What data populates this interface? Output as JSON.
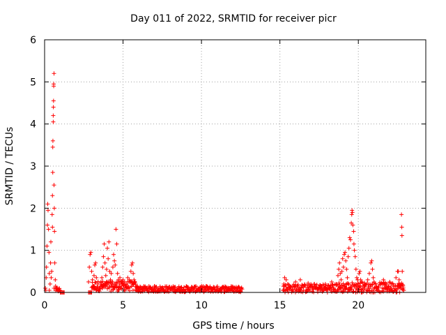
{
  "chart_data": {
    "type": "scatter",
    "title": "Day 011 of 2022, SRMTID for receiver picr",
    "xlabel": "GPS time / hours",
    "ylabel": "SRMTID / TECUs",
    "xlim": [
      0,
      24.3
    ],
    "ylim": [
      0,
      6
    ],
    "x_ticks": [
      "0",
      "5",
      "10",
      "15",
      "20"
    ],
    "x_tick_values": [
      0,
      5,
      10,
      15,
      20
    ],
    "y_ticks": [
      "0",
      "1",
      "2",
      "3",
      "4",
      "5",
      "6"
    ],
    "y_tick_values": [
      0,
      1,
      2,
      3,
      4,
      5,
      6
    ],
    "grid": true,
    "marker": "+",
    "color": "#ff0000",
    "series": [
      {
        "name": "SRMTID",
        "points": [
          [
            0.05,
            0.1
          ],
          [
            0.1,
            0.35
          ],
          [
            0.12,
            0.6
          ],
          [
            0.15,
            1.1
          ],
          [
            0.18,
            1.6
          ],
          [
            0.2,
            2.1
          ],
          [
            0.22,
            1.95
          ],
          [
            0.25,
            1.5
          ],
          [
            0.28,
            0.95
          ],
          [
            0.3,
            0.45
          ],
          [
            0.35,
            0.2
          ],
          [
            0.38,
            0.7
          ],
          [
            0.4,
            1.2
          ],
          [
            0.42,
            0.35
          ],
          [
            0.45,
            0.5
          ],
          [
            0.48,
            1.85
          ],
          [
            0.5,
            1.55
          ],
          [
            0.5,
            2.3
          ],
          [
            0.52,
            2.85
          ],
          [
            0.52,
            3.45
          ],
          [
            0.53,
            3.6
          ],
          [
            0.55,
            4.05
          ],
          [
            0.55,
            4.2
          ],
          [
            0.56,
            4.4
          ],
          [
            0.57,
            4.55
          ],
          [
            0.58,
            4.9
          ],
          [
            0.58,
            4.95
          ],
          [
            0.6,
            5.2
          ],
          [
            0.6,
            2.55
          ],
          [
            0.62,
            2.0
          ],
          [
            0.63,
            1.45
          ],
          [
            0.65,
            0.7
          ],
          [
            0.68,
            0.3
          ],
          [
            0.7,
            0.15
          ],
          [
            0.08,
            0.05
          ],
          [
            0.3,
            0.05
          ],
          [
            0.6,
            0.1
          ],
          [
            1.0,
            0.0
          ],
          [
            1.05,
            0.0
          ],
          [
            1.1,
            0.0
          ],
          [
            1.15,
            0.0
          ],
          [
            1.2,
            0.0
          ],
          [
            1.25,
            0.0
          ],
          [
            2.8,
            0.0
          ],
          [
            2.85,
            0.0
          ],
          [
            2.9,
            0.0
          ],
          [
            2.95,
            0.0
          ],
          [
            3.0,
            0.0
          ],
          [
            2.8,
            0.25
          ],
          [
            2.85,
            0.6
          ],
          [
            2.9,
            0.9
          ],
          [
            2.95,
            0.95
          ],
          [
            3.0,
            0.5
          ],
          [
            3.05,
            0.3
          ],
          [
            3.1,
            0.15
          ],
          [
            3.15,
            0.4
          ],
          [
            3.2,
            0.65
          ],
          [
            3.25,
            0.7
          ],
          [
            3.3,
            0.35
          ],
          [
            3.4,
            0.2
          ],
          [
            3.5,
            0.1
          ],
          [
            3.6,
            0.25
          ],
          [
            3.65,
            0.35
          ],
          [
            3.7,
            0.6
          ],
          [
            3.75,
            0.85
          ],
          [
            3.8,
            1.15
          ],
          [
            3.85,
            0.7
          ],
          [
            3.9,
            0.4
          ],
          [
            3.95,
            0.55
          ],
          [
            4.0,
            1.05
          ],
          [
            4.05,
            0.8
          ],
          [
            4.1,
            1.2
          ],
          [
            4.15,
            0.5
          ],
          [
            4.2,
            0.3
          ],
          [
            4.25,
            0.45
          ],
          [
            4.3,
            0.2
          ],
          [
            4.35,
            0.6
          ],
          [
            4.4,
            0.9
          ],
          [
            4.45,
            0.75
          ],
          [
            4.5,
            0.65
          ],
          [
            4.55,
            1.5
          ],
          [
            4.6,
            1.15
          ],
          [
            4.65,
            0.45
          ],
          [
            4.7,
            0.3
          ],
          [
            4.75,
            0.25
          ],
          [
            4.8,
            0.35
          ],
          [
            4.9,
            0.2
          ],
          [
            5.0,
            0.3
          ],
          [
            5.1,
            0.25
          ],
          [
            5.2,
            0.2
          ],
          [
            5.3,
            0.35
          ],
          [
            5.4,
            0.3
          ],
          [
            5.5,
            0.5
          ],
          [
            5.55,
            0.65
          ],
          [
            5.6,
            0.7
          ],
          [
            5.65,
            0.45
          ],
          [
            5.7,
            0.3
          ],
          [
            5.8,
            0.2
          ],
          [
            5.9,
            0.15
          ],
          [
            6.0,
            0.1
          ],
          [
            7.0,
            0.15
          ],
          [
            8.7,
            0.12
          ],
          [
            10.3,
            0.15
          ],
          [
            11.5,
            0.14
          ],
          [
            12.4,
            0.12
          ],
          [
            15.2,
            0.05
          ],
          [
            15.25,
            0.2
          ],
          [
            15.3,
            0.35
          ],
          [
            15.4,
            0.3
          ],
          [
            15.5,
            0.2
          ],
          [
            16.0,
            0.25
          ],
          [
            16.3,
            0.3
          ],
          [
            16.8,
            0.22
          ],
          [
            17.2,
            0.2
          ],
          [
            17.6,
            0.15
          ],
          [
            17.9,
            0.2
          ],
          [
            18.3,
            0.25
          ],
          [
            18.6,
            0.2
          ],
          [
            18.7,
            0.4
          ],
          [
            18.75,
            0.55
          ],
          [
            18.8,
            0.7
          ],
          [
            18.85,
            0.45
          ],
          [
            18.9,
            0.3
          ],
          [
            18.95,
            0.5
          ],
          [
            19.0,
            0.8
          ],
          [
            19.05,
            0.6
          ],
          [
            19.1,
            0.9
          ],
          [
            19.15,
            0.95
          ],
          [
            19.2,
            0.75
          ],
          [
            19.25,
            0.55
          ],
          [
            19.3,
            0.35
          ],
          [
            19.35,
            0.85
          ],
          [
            19.4,
            1.05
          ],
          [
            19.45,
            1.3
          ],
          [
            19.5,
            1.25
          ],
          [
            19.55,
            1.65
          ],
          [
            19.58,
            1.85
          ],
          [
            19.6,
            1.95
          ],
          [
            19.62,
            1.9
          ],
          [
            19.65,
            1.6
          ],
          [
            19.7,
            1.45
          ],
          [
            19.72,
            1.15
          ],
          [
            19.75,
            1.0
          ],
          [
            19.8,
            0.85
          ],
          [
            19.85,
            0.55
          ],
          [
            19.9,
            0.35
          ],
          [
            19.95,
            0.3
          ],
          [
            20.0,
            0.2
          ],
          [
            20.05,
            0.45
          ],
          [
            20.1,
            0.5
          ],
          [
            20.15,
            0.3
          ],
          [
            20.2,
            0.25
          ],
          [
            20.3,
            0.15
          ],
          [
            20.4,
            0.2
          ],
          [
            20.6,
            0.3
          ],
          [
            20.7,
            0.45
          ],
          [
            20.8,
            0.7
          ],
          [
            20.85,
            0.75
          ],
          [
            20.9,
            0.55
          ],
          [
            20.95,
            0.35
          ],
          [
            21.0,
            0.25
          ],
          [
            21.1,
            0.2
          ],
          [
            21.3,
            0.15
          ],
          [
            21.6,
            0.3
          ],
          [
            21.8,
            0.2
          ],
          [
            22.0,
            0.25
          ],
          [
            22.2,
            0.2
          ],
          [
            22.4,
            0.35
          ],
          [
            22.5,
            0.5
          ],
          [
            22.55,
            0.5
          ],
          [
            22.6,
            0.3
          ],
          [
            22.65,
            0.2
          ],
          [
            22.7,
            0.1
          ],
          [
            22.75,
            1.85
          ],
          [
            22.77,
            1.55
          ],
          [
            22.78,
            1.35
          ],
          [
            22.8,
            0.5
          ],
          [
            22.85,
            0.15
          ],
          [
            22.9,
            0.05
          ]
        ],
        "bands": [
          {
            "from": 0.7,
            "to": 1.0,
            "center": 0.06,
            "spread": 0.05
          },
          {
            "from": 3.0,
            "to": 5.8,
            "center": 0.15,
            "spread": 0.12
          },
          {
            "from": 5.8,
            "to": 12.6,
            "center": 0.08,
            "spread": 0.07
          },
          {
            "from": 15.2,
            "to": 18.6,
            "center": 0.1,
            "spread": 0.1
          },
          {
            "from": 18.6,
            "to": 22.9,
            "center": 0.12,
            "spread": 0.12
          }
        ]
      }
    ]
  }
}
